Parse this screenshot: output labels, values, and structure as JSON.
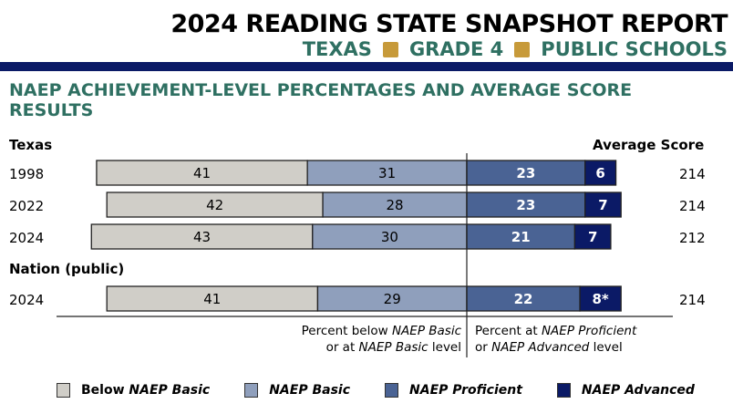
{
  "header": {
    "title": "2024 READING STATE SNAPSHOT REPORT",
    "subtitle_parts": [
      "TEXAS",
      "GRADE 4",
      "PUBLIC SCHOOLS"
    ],
    "accent_color": "#2f7062",
    "bullet_color": "#c79a3a",
    "bar_color": "#0b1a66"
  },
  "section_title": "NAEP ACHIEVEMENT-LEVEL PERCENTAGES AND AVERAGE SCORE RESULTS",
  "chart_data": {
    "type": "bar",
    "orientation": "horizontal-stacked-diverging",
    "title": "NAEP ACHIEVEMENT-LEVEL PERCENTAGES AND AVERAGE SCORE RESULTS",
    "groups": [
      {
        "label": "Texas",
        "rows": [
          {
            "year": "1998",
            "below_basic": 41,
            "basic": 31,
            "proficient": 23,
            "advanced": 6,
            "advanced_label": "6",
            "average_score": 214
          },
          {
            "year": "2022",
            "below_basic": 42,
            "basic": 28,
            "proficient": 23,
            "advanced": 7,
            "advanced_label": "7",
            "average_score": 214
          },
          {
            "year": "2024",
            "below_basic": 43,
            "basic": 30,
            "proficient": 21,
            "advanced": 7,
            "advanced_label": "7",
            "average_score": 212
          }
        ]
      },
      {
        "label": "Nation (public)",
        "rows": [
          {
            "year": "2024",
            "below_basic": 41,
            "basic": 29,
            "proficient": 22,
            "advanced": 8,
            "advanced_label": "8*",
            "average_score": 214
          }
        ]
      }
    ],
    "score_header": "Average Score",
    "series": [
      {
        "name": "Below NAEP Basic",
        "color": "#d0cec8",
        "text_color": "#000000"
      },
      {
        "name": "NAEP Basic",
        "color": "#8f9fbc",
        "text_color": "#000000"
      },
      {
        "name": "NAEP Proficient",
        "color": "#4a6394",
        "text_color": "#ffffff"
      },
      {
        "name": "NAEP Advanced",
        "color": "#0b1a66",
        "text_color": "#ffffff"
      }
    ],
    "footnote_left": [
      "Percent below ",
      "NAEP Basic",
      "or at ",
      "NAEP Basic",
      " level"
    ],
    "footnote_right": [
      "Percent at ",
      "NAEP Proficient",
      "or ",
      "NAEP Advanced",
      " level"
    ],
    "legend": [
      {
        "prefix": "Below ",
        "italic": "NAEP Basic"
      },
      {
        "prefix": "",
        "italic": "NAEP Basic"
      },
      {
        "prefix": "",
        "italic": "NAEP Proficient"
      },
      {
        "prefix": "",
        "italic": "NAEP Advanced"
      }
    ],
    "legend_position": "bottom"
  }
}
